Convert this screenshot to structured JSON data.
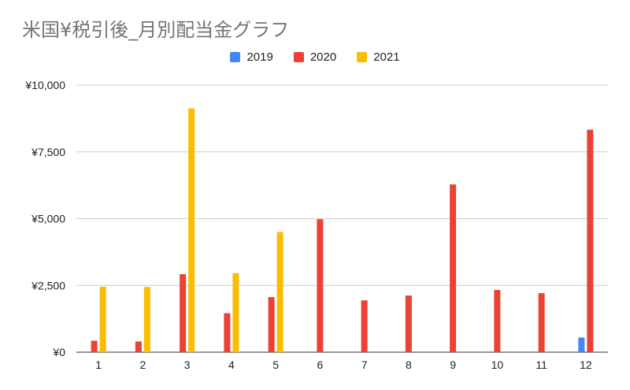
{
  "chart_data": {
    "type": "bar",
    "title": "米国¥税引後_月別配当金グラフ",
    "xlabel": "",
    "ylabel": "",
    "categories": [
      "1",
      "2",
      "3",
      "4",
      "5",
      "6",
      "7",
      "8",
      "9",
      "10",
      "11",
      "12"
    ],
    "ylim": [
      0,
      10000
    ],
    "yticks": [
      "¥0",
      "¥2,500",
      "¥5,000",
      "¥7,500",
      "¥10,000"
    ],
    "ytick_values": [
      0,
      2500,
      5000,
      7500,
      10000
    ],
    "grid": true,
    "legend_position": "top",
    "series": [
      {
        "name": "2019",
        "color": "#4285f4",
        "values": [
          0,
          0,
          0,
          0,
          0,
          0,
          0,
          0,
          0,
          0,
          0,
          550
        ]
      },
      {
        "name": "2020",
        "color": "#ea4335",
        "values": [
          430,
          400,
          2920,
          1460,
          2060,
          4980,
          1940,
          2120,
          6280,
          2330,
          2210,
          8330
        ]
      },
      {
        "name": "2021",
        "color": "#fbbc04",
        "values": [
          2450,
          2440,
          9130,
          2960,
          4500,
          0,
          0,
          0,
          0,
          0,
          0,
          0
        ]
      }
    ]
  }
}
